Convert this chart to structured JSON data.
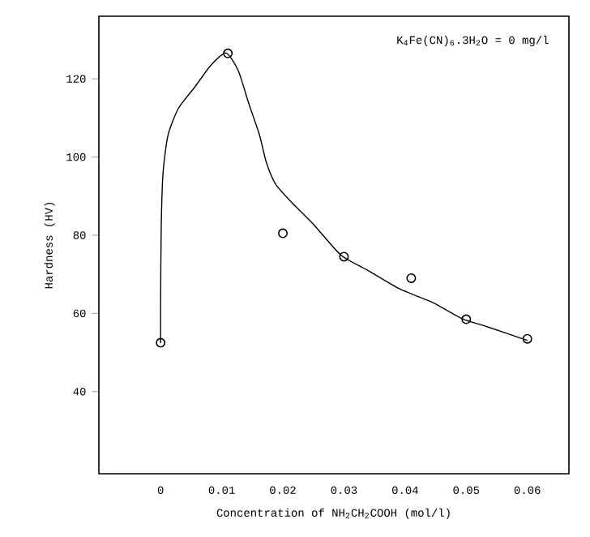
{
  "chart_data": {
    "type": "scatter",
    "xlabel": "Concentration of NH$_{2}$CH$_{2}$COOH (mol/l)",
    "ylabel": "Hardness (HV)",
    "annotations": [
      "K$_{4}$Fe(CN)$_{6}$.3H$_{2}$O = 0 mg/l"
    ],
    "xlim": [
      -0.0101,
      0.0668
    ],
    "ylim": [
      19,
      136
    ],
    "xticks": [
      0,
      0.01,
      0.02,
      0.03,
      0.04,
      0.05,
      0.06
    ],
    "yticks": [
      40,
      60,
      80,
      100,
      120
    ],
    "grid": false,
    "series": [
      {
        "marker": "circle",
        "color": "#000000",
        "x": [
          0,
          0.011,
          0.02,
          0.03,
          0.041,
          0.05,
          0.06
        ],
        "values": [
          52.5,
          126.5,
          80.5,
          74.5,
          69,
          58.5,
          53.5
        ]
      },
      {
        "type": "line",
        "marker": "none",
        "line_style": "solid",
        "color": "#000000",
        "x": [
          0,
          0,
          0.0001,
          0.0004,
          0.0012,
          0.0029,
          0.0056,
          0.0082,
          0.0107,
          0.0127,
          0.0144,
          0.0162,
          0.0173,
          0.0188,
          0.0215,
          0.025,
          0.0295,
          0.0339,
          0.0392,
          0.0445,
          0.0494,
          0.0534,
          0.06
        ],
        "values": [
          52.4,
          62.8,
          82.1,
          95.9,
          105.5,
          112.4,
          117.9,
          123.4,
          126.6,
          122.1,
          113.8,
          105.5,
          98.6,
          93.1,
          88.3,
          82.8,
          74.9,
          71.0,
          66.2,
          62.8,
          58.6,
          56.6,
          53.1
        ]
      }
    ]
  }
}
